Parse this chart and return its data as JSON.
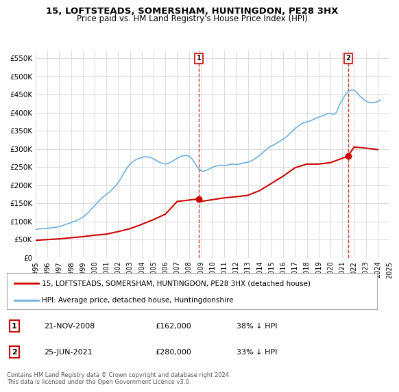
{
  "title": "15, LOFTSTEADS, SOMERSHAM, HUNTINGDON, PE28 3HX",
  "subtitle": "Price paid vs. HM Land Registry's House Price Index (HPI)",
  "legend_line1": "15, LOFTSTEADS, SOMERSHAM, HUNTINGDON, PE28 3HX (detached house)",
  "legend_line2": "HPI: Average price, detached house, Huntingdonshire",
  "footnote": "Contains HM Land Registry data © Crown copyright and database right 2024.\nThis data is licensed under the Open Government Licence v3.0.",
  "transaction1_label": "1",
  "transaction1_date": "21-NOV-2008",
  "transaction1_price": "£162,000",
  "transaction1_hpi": "38% ↓ HPI",
  "transaction2_label": "2",
  "transaction2_date": "25-JUN-2021",
  "transaction2_price": "£280,000",
  "transaction2_hpi": "33% ↓ HPI",
  "hpi_color": "#6eb0de",
  "price_color": "#cc0000",
  "marker_color": "#cc0000",
  "background_color": "#ffffff",
  "grid_color": "#dddddd",
  "ylim": [
    0,
    570000
  ],
  "yticks": [
    0,
    50000,
    100000,
    150000,
    200000,
    250000,
    300000,
    350000,
    400000,
    450000,
    500000,
    550000
  ],
  "ytick_labels": [
    "£0",
    "£50K",
    "£100K",
    "£150K",
    "£200K",
    "£250K",
    "£300K",
    "£350K",
    "£400K",
    "£450K",
    "£500K",
    "£550K"
  ],
  "hpi_data_x": [
    1995.0,
    1995.25,
    1995.5,
    1995.75,
    1996.0,
    1996.25,
    1996.5,
    1996.75,
    1997.0,
    1997.25,
    1997.5,
    1997.75,
    1998.0,
    1998.25,
    1998.5,
    1998.75,
    1999.0,
    1999.25,
    1999.5,
    1999.75,
    2000.0,
    2000.25,
    2000.5,
    2000.75,
    2001.0,
    2001.25,
    2001.5,
    2001.75,
    2002.0,
    2002.25,
    2002.5,
    2002.75,
    2003.0,
    2003.25,
    2003.5,
    2003.75,
    2004.0,
    2004.25,
    2004.5,
    2004.75,
    2005.0,
    2005.25,
    2005.5,
    2005.75,
    2006.0,
    2006.25,
    2006.5,
    2006.75,
    2007.0,
    2007.25,
    2007.5,
    2007.75,
    2008.0,
    2008.25,
    2008.5,
    2008.75,
    2009.0,
    2009.25,
    2009.5,
    2009.75,
    2010.0,
    2010.25,
    2010.5,
    2010.75,
    2011.0,
    2011.25,
    2011.5,
    2011.75,
    2012.0,
    2012.25,
    2012.5,
    2012.75,
    2013.0,
    2013.25,
    2013.5,
    2013.75,
    2014.0,
    2014.25,
    2014.5,
    2014.75,
    2015.0,
    2015.25,
    2015.5,
    2015.75,
    2016.0,
    2016.25,
    2016.5,
    2016.75,
    2017.0,
    2017.25,
    2017.5,
    2017.75,
    2018.0,
    2018.25,
    2018.5,
    2018.75,
    2019.0,
    2019.25,
    2019.5,
    2019.75,
    2020.0,
    2020.25,
    2020.5,
    2020.75,
    2021.0,
    2021.25,
    2021.5,
    2021.75,
    2022.0,
    2022.25,
    2022.5,
    2022.75,
    2023.0,
    2023.25,
    2023.5,
    2023.75,
    2024.0,
    2024.25
  ],
  "hpi_data_y": [
    78000,
    79000,
    80000,
    80500,
    81000,
    82000,
    83000,
    84000,
    86000,
    88000,
    91000,
    94000,
    97000,
    100000,
    103000,
    107000,
    112000,
    118000,
    126000,
    135000,
    143000,
    152000,
    161000,
    168000,
    174000,
    181000,
    188000,
    197000,
    207000,
    220000,
    234000,
    248000,
    258000,
    265000,
    270000,
    273000,
    276000,
    278000,
    278000,
    276000,
    272000,
    268000,
    263000,
    260000,
    258000,
    260000,
    264000,
    269000,
    274000,
    278000,
    281000,
    282000,
    280000,
    273000,
    261000,
    248000,
    240000,
    238000,
    241000,
    245000,
    249000,
    252000,
    254000,
    255000,
    254000,
    255000,
    257000,
    258000,
    257000,
    258000,
    260000,
    262000,
    263000,
    266000,
    271000,
    276000,
    282000,
    289000,
    296000,
    304000,
    308000,
    312000,
    317000,
    322000,
    327000,
    333000,
    340000,
    348000,
    356000,
    362000,
    368000,
    372000,
    374000,
    377000,
    380000,
    384000,
    387000,
    390000,
    393000,
    397000,
    398000,
    395000,
    400000,
    420000,
    435000,
    448000,
    458000,
    462000,
    462000,
    455000,
    445000,
    438000,
    432000,
    428000,
    427000,
    428000,
    430000,
    435000
  ],
  "price_data_x": [
    1995.0,
    1996.0,
    1997.0,
    1998.0,
    1999.0,
    2000.0,
    2001.0,
    2002.0,
    2003.0,
    2004.0,
    2005.0,
    2006.0,
    2007.0,
    2008.833,
    2009.0,
    2010.0,
    2011.0,
    2012.0,
    2013.0,
    2014.0,
    2015.0,
    2016.0,
    2017.0,
    2018.0,
    2019.0,
    2020.0,
    2021.5,
    2022.0,
    2023.0,
    2024.0
  ],
  "price_data_y": [
    48000,
    50000,
    52000,
    55000,
    58000,
    62000,
    65000,
    72000,
    80000,
    92000,
    105000,
    120000,
    155000,
    162000,
    155000,
    160000,
    165000,
    168000,
    172000,
    185000,
    205000,
    225000,
    248000,
    258000,
    258000,
    262000,
    280000,
    305000,
    302000,
    298000
  ],
  "transaction1_x": 2008.833,
  "transaction1_y": 162000,
  "transaction2_x": 2021.5,
  "transaction2_y": 280000,
  "xmin": 1995,
  "xmax": 2025,
  "xticks": [
    1995,
    1996,
    1997,
    1998,
    1999,
    2000,
    2001,
    2002,
    2003,
    2004,
    2005,
    2006,
    2007,
    2008,
    2009,
    2010,
    2011,
    2012,
    2013,
    2014,
    2015,
    2016,
    2017,
    2018,
    2019,
    2020,
    2021,
    2022,
    2023,
    2024,
    2025
  ]
}
